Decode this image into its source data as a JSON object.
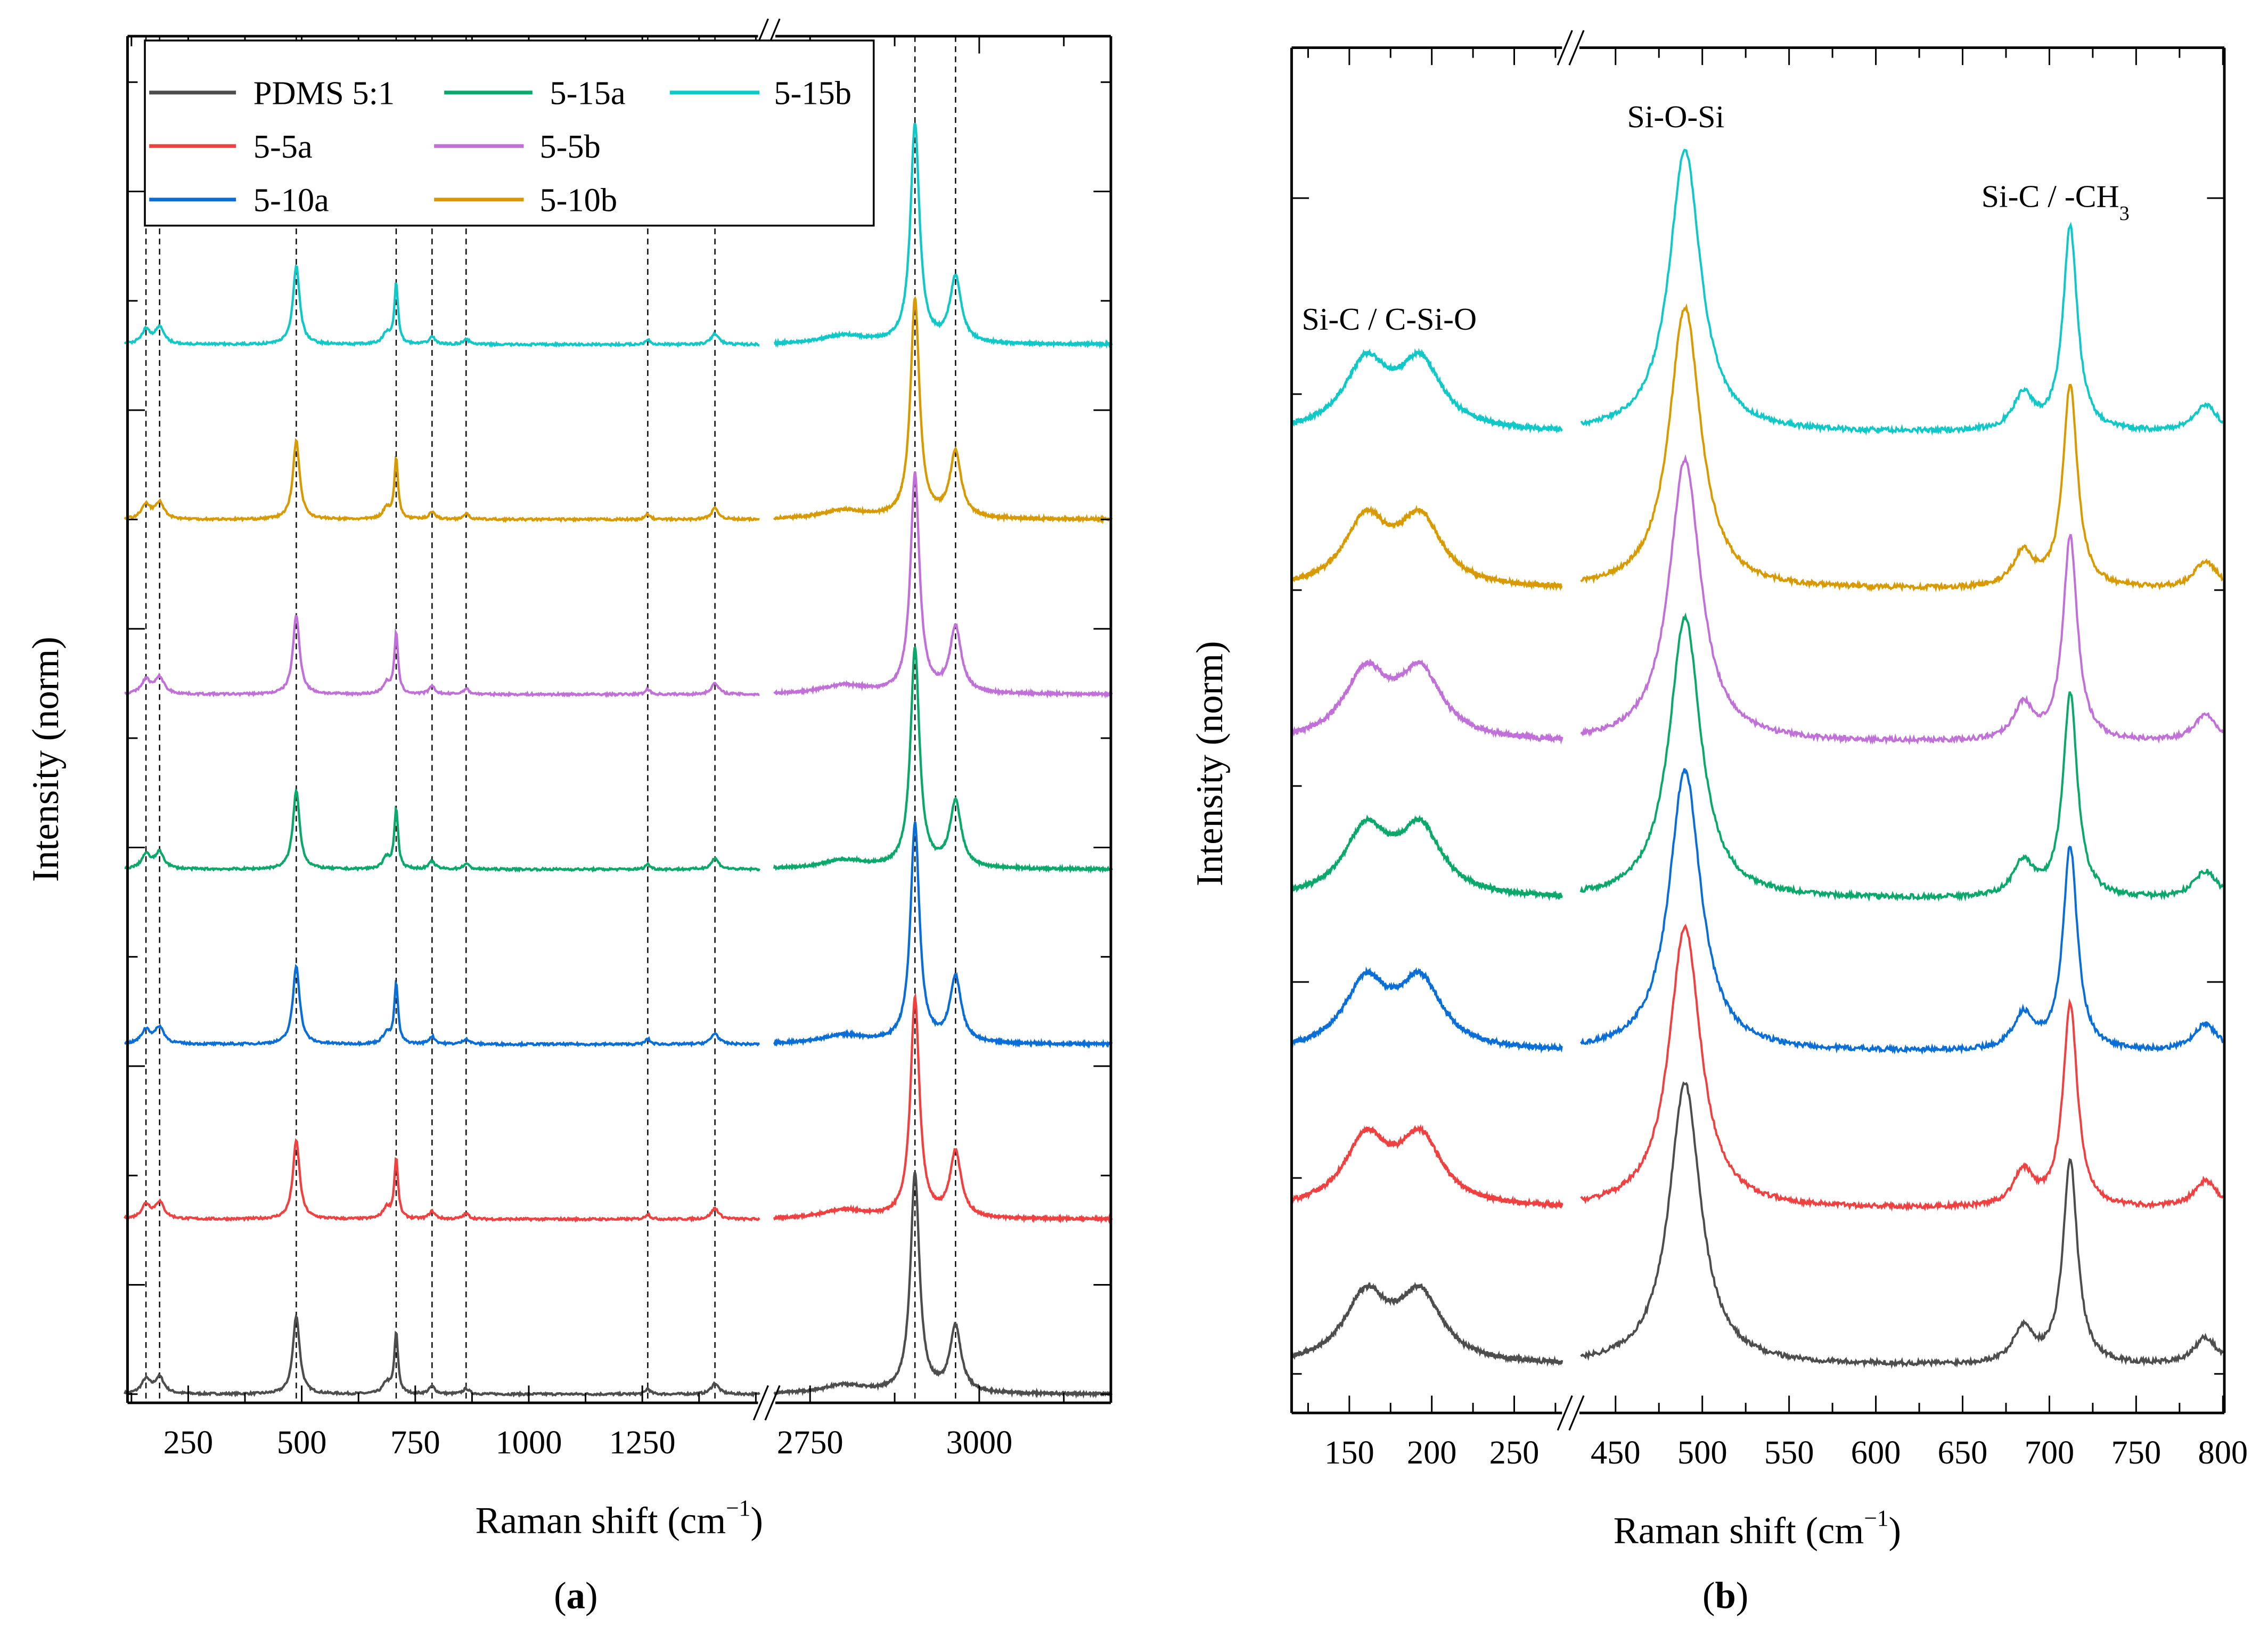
{
  "chart_data": [
    {
      "type": "line",
      "panel": "a",
      "caption": [
        "(",
        "a",
        ")"
      ],
      "xlabel": {
        "text": "Raman shift (cm",
        "sup": "−1",
        "end": ")"
      },
      "ylabel": "Intensity (norm)",
      "x_break": [
        1508,
        2697
      ],
      "xlim_segments": [
        [
          110,
          1508
        ],
        [
          2697,
          3196
        ]
      ],
      "ylim": [
        -0.08,
        12.42
      ],
      "x_ticks_labeled": [
        250,
        500,
        750,
        1000,
        1250,
        2750,
        3000
      ],
      "x_tick_labels": [
        "250",
        "500",
        "750",
        "1000",
        "1250",
        "2750",
        "3000"
      ],
      "y_ticks": [
        0,
        1,
        2,
        3,
        4,
        5,
        6,
        7,
        8,
        9,
        10,
        11,
        12
      ],
      "y_tick_labels_shown": false,
      "peak_markers": [
        157,
        187,
        488,
        708,
        787,
        862,
        1262,
        1410,
        2905,
        2965
      ],
      "peaks": [
        {
          "center": 157,
          "height": 0.13,
          "width": 12
        },
        {
          "center": 187,
          "height": 0.15,
          "width": 12
        },
        {
          "center": 488,
          "height": 0.72,
          "width": 9
        },
        {
          "center": 687,
          "height": 0.1,
          "width": 10
        },
        {
          "center": 708,
          "height": 0.55,
          "width": 5
        },
        {
          "center": 787,
          "height": 0.07,
          "width": 8
        },
        {
          "center": 862,
          "height": 0.05,
          "width": 8
        },
        {
          "center": 1262,
          "height": 0.05,
          "width": 6
        },
        {
          "center": 1410,
          "height": 0.1,
          "width": 10
        },
        {
          "center": 2800,
          "height": 0.08,
          "width": 40
        },
        {
          "center": 2905,
          "height": 2.0,
          "width": 8
        },
        {
          "center": 2965,
          "height": 0.6,
          "width": 10
        }
      ],
      "legend": {
        "placement": "top-left",
        "entries": [
          "PDMS 5:1",
          "5-15a",
          "5-15b",
          "5-5a",
          "5-5b",
          "5-10a",
          "5-10b"
        ]
      },
      "series": [
        {
          "name": "PDMS 5:1",
          "color": "#4d4d4d",
          "offset": 0.0,
          "scale": 1.0
        },
        {
          "name": "5-5a",
          "color": "#f04040",
          "offset": 1.6,
          "scale": 1.0
        },
        {
          "name": "5-10a",
          "color": "#0a6ed8",
          "offset": 3.2,
          "scale": 1.0
        },
        {
          "name": "5-15a",
          "color": "#0aa86a",
          "offset": 4.8,
          "scale": 1.0
        },
        {
          "name": "5-5b",
          "color": "#c070d8",
          "offset": 6.4,
          "scale": 1.0
        },
        {
          "name": "5-10b",
          "color": "#d89a00",
          "offset": 8.0,
          "scale": 1.0
        },
        {
          "name": "5-15b",
          "color": "#10c8c8",
          "offset": 9.6,
          "scale": 1.0
        }
      ]
    },
    {
      "type": "line",
      "panel": "b",
      "caption": [
        "(",
        "b",
        ")"
      ],
      "xlabel": {
        "text": "Raman shift (cm",
        "sup": "−1",
        "end": ")"
      },
      "ylabel": "Intensity (norm)",
      "x_break": [
        279,
        430
      ],
      "xlim_segments": [
        [
          115,
          279
        ],
        [
          430,
          800
        ]
      ],
      "ylim": [
        -0.1,
        3.38
      ],
      "x_ticks_labeled": [
        150,
        200,
        250,
        450,
        500,
        550,
        600,
        650,
        700,
        750,
        800
      ],
      "x_tick_labels": [
        "150",
        "200",
        "250",
        "450",
        "500",
        "550",
        "600",
        "650",
        "700",
        "750",
        "800"
      ],
      "y_ticks": [
        0,
        1,
        2,
        3
      ],
      "y_tick_labels_shown": false,
      "annotations": [
        {
          "text": "Si-C / C-Si-O",
          "x": 198
        },
        {
          "text": "Si-O-Si",
          "x": 490
        },
        {
          "text": "Si-C / -CH",
          "sub": "3",
          "x": 712
        }
      ],
      "peaks": [
        {
          "center": 160,
          "height": 0.17,
          "width": 16
        },
        {
          "center": 193,
          "height": 0.17,
          "width": 16
        },
        {
          "center": 490,
          "height": 0.72,
          "width": 11
        },
        {
          "center": 685,
          "height": 0.09,
          "width": 7
        },
        {
          "center": 712,
          "height": 0.52,
          "width": 5
        },
        {
          "center": 790,
          "height": 0.07,
          "width": 8
        }
      ],
      "series": [
        {
          "name": "PDMS 5:1",
          "color": "#4d4d4d",
          "offset": 0.02,
          "scale": 1.0
        },
        {
          "name": "5-5a",
          "color": "#f04040",
          "offset": 0.42,
          "scale": 1.0
        },
        {
          "name": "5-10a",
          "color": "#0a6ed8",
          "offset": 0.82,
          "scale": 1.0
        },
        {
          "name": "5-15a",
          "color": "#0aa86a",
          "offset": 1.21,
          "scale": 1.0
        },
        {
          "name": "5-5b",
          "color": "#c070d8",
          "offset": 1.61,
          "scale": 1.0
        },
        {
          "name": "5-10b",
          "color": "#d89a00",
          "offset": 2.0,
          "scale": 1.0
        },
        {
          "name": "5-15b",
          "color": "#10c8c8",
          "offset": 2.4,
          "scale": 1.0
        }
      ]
    }
  ]
}
